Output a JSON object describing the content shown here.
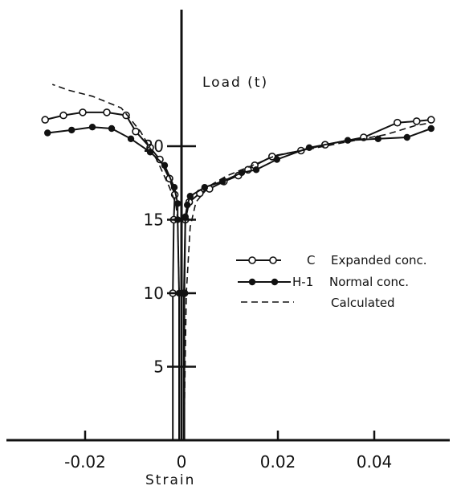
{
  "chart_data": {
    "type": "line",
    "title": "",
    "xlabel": "Strain",
    "ylabel": "Load (t)",
    "xlim": [
      -0.035,
      0.055
    ],
    "ylim": [
      0,
      25
    ],
    "grid": false,
    "x_ticks": [
      {
        "value": -0.02,
        "label": "-0.02"
      },
      {
        "value": 0,
        "label": "0"
      },
      {
        "value": 0.02,
        "label": "0.02"
      },
      {
        "value": 0.04,
        "label": "0.04"
      }
    ],
    "y_ticks": [
      {
        "value": 5,
        "label": "5"
      },
      {
        "value": 10,
        "label": "10"
      },
      {
        "value": 15,
        "label": "15"
      },
      {
        "value": 20,
        "label": "20"
      }
    ],
    "legend": {
      "placement": "right",
      "entries": [
        {
          "code": "C",
          "text": "Expanded conc.",
          "style": "open-circle"
        },
        {
          "code": "H-1",
          "text": "Normal conc.",
          "style": "filled-circle"
        },
        {
          "code": "",
          "text": "Calculated",
          "style": "dashed"
        }
      ]
    },
    "series": [
      {
        "style": "open-circle",
        "points": [
          [
            -0.0018,
            0
          ],
          [
            -0.0018,
            10
          ],
          [
            -0.0016,
            15
          ],
          [
            -0.0014,
            16.7
          ],
          [
            -0.0025,
            17.8
          ],
          [
            -0.0045,
            19.1
          ],
          [
            -0.0065,
            19.9
          ],
          [
            -0.0095,
            21
          ],
          [
            -0.0115,
            22.1
          ],
          [
            -0.0155,
            22.3
          ],
          [
            -0.0205,
            22.3
          ],
          [
            -0.0245,
            22.1
          ],
          [
            -0.0283,
            21.8
          ]
        ],
        "branch2": [
          [
            0.0006,
            0
          ],
          [
            0.0006,
            10
          ],
          [
            0.0008,
            15
          ],
          [
            0.0016,
            16.2
          ],
          [
            0.0038,
            16.8
          ],
          [
            0.0058,
            17.1
          ],
          [
            0.0088,
            17.6
          ],
          [
            0.0118,
            18
          ],
          [
            0.0138,
            18.4
          ],
          [
            0.0152,
            18.7
          ],
          [
            0.0188,
            19.3
          ],
          [
            0.0248,
            19.7
          ],
          [
            0.0298,
            20.1
          ],
          [
            0.0378,
            20.6
          ],
          [
            0.0448,
            21.6
          ],
          [
            0.0488,
            21.7
          ],
          [
            0.0518,
            21.8
          ]
        ]
      },
      {
        "style": "filled-circle",
        "points": [
          [
            -0.0005,
            0
          ],
          [
            -0.0005,
            10
          ],
          [
            -0.0008,
            15
          ],
          [
            -0.0008,
            16.1
          ],
          [
            -0.0015,
            17.2
          ],
          [
            -0.0035,
            18.7
          ],
          [
            -0.0065,
            19.6
          ],
          [
            -0.0105,
            20.5
          ],
          [
            -0.0145,
            21.2
          ],
          [
            -0.0185,
            21.3
          ],
          [
            -0.0228,
            21.1
          ],
          [
            -0.0278,
            20.9
          ]
        ],
        "branch2": [
          [
            0.0005,
            0
          ],
          [
            0.0005,
            10
          ],
          [
            0.0008,
            15.2
          ],
          [
            0.0012,
            16
          ],
          [
            0.0018,
            16.6
          ],
          [
            0.0048,
            17.2
          ],
          [
            0.0085,
            17.6
          ],
          [
            0.0125,
            18.2
          ],
          [
            0.0155,
            18.4
          ],
          [
            0.0198,
            19.1
          ],
          [
            0.0265,
            19.9
          ],
          [
            0.0345,
            20.4
          ],
          [
            0.0408,
            20.5
          ],
          [
            0.0468,
            20.6
          ],
          [
            0.0518,
            21.2
          ]
        ]
      },
      {
        "style": "dashed",
        "points": [
          [
            -0.0005,
            0
          ],
          [
            -0.0005,
            10
          ],
          [
            -0.0008,
            15
          ],
          [
            -0.0012,
            16.1
          ],
          [
            -0.0025,
            17.2
          ],
          [
            -0.005,
            19
          ],
          [
            -0.0085,
            21
          ],
          [
            -0.0125,
            22.6
          ],
          [
            -0.0185,
            23.4
          ],
          [
            -0.0233,
            23.8
          ],
          [
            -0.0268,
            24.2
          ]
        ],
        "branch2": [
          [
            0.0005,
            0
          ],
          [
            0.001,
            10
          ],
          [
            0.0018,
            14.5
          ],
          [
            0.003,
            16.2
          ],
          [
            0.0058,
            17.3
          ],
          [
            0.0095,
            18
          ],
          [
            0.0155,
            18.8
          ],
          [
            0.0198,
            19.4
          ],
          [
            0.0265,
            19.8
          ],
          [
            0.0345,
            20.3
          ],
          [
            0.0425,
            20.8
          ],
          [
            0.0485,
            21.4
          ],
          [
            0.0518,
            21.6
          ]
        ]
      }
    ]
  }
}
